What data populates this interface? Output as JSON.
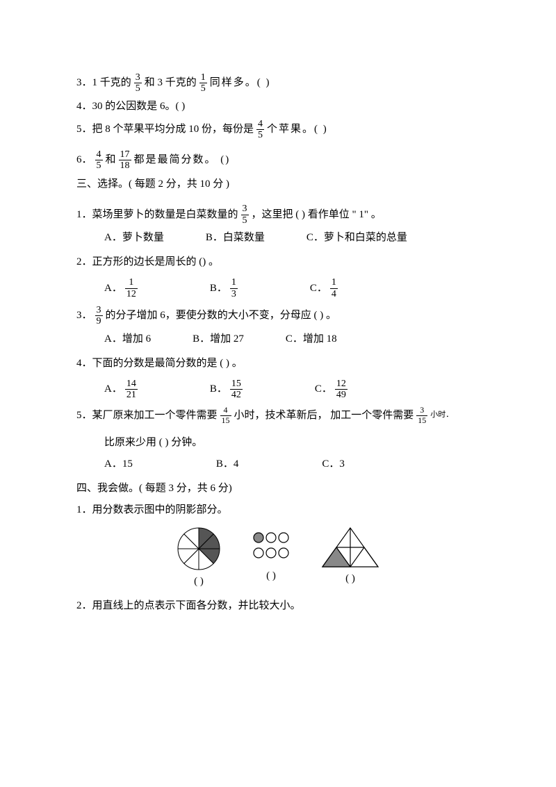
{
  "q3t": {
    "pre": "3．1 千克的",
    "f1n": "3",
    "f1d": "5",
    "mid": "和 3 千克的",
    "f2n": "1",
    "f2d": "5",
    "post": "同样多。(      )"
  },
  "q4t": "4．30 的公因数是 6。(         )",
  "q5t": {
    "pre": "5．把 8 个苹果平均分成  10 份，每份是",
    "fn": "4",
    "fd": "5",
    "post": "个苹果。(       )"
  },
  "q6t": {
    "f1n": "4",
    "f1d": "5",
    "mid": "和",
    "f2n": "17",
    "f2d": "18",
    "post": "都是最简分数。 ()",
    "num": "6．"
  },
  "sec3": "三、选择。( 每题 2 分，共 10 分 )",
  "s3q1": {
    "pre": "1．菜场里萝卜的数量是白菜数量的",
    "fn": "3",
    "fd": "5",
    "mid": "，这里把 (       ) 看作单位 \" 1\" 。",
    "A": "A．萝卜数量",
    "B": "B．白菜数量",
    "C": "C．萝卜和白菜的总量"
  },
  "s3q2": {
    "t": "2．正方形的边长是周长的 () 。",
    "A": "A．",
    "An": "1",
    "Ad": "12",
    "B": "B．",
    "Bn": "1",
    "Bd": "3",
    "C": "C．",
    "Cn": "1",
    "Cd": "4"
  },
  "s3q3": {
    "fn": "3",
    "fd": "9",
    "t": "的分子增加 6，要使分数的大小不变，分母应  (        ) 。",
    "num": "3．",
    "A": "A．增加 6",
    "B": "B．增加 27",
    "C": "C．增加 18"
  },
  "s3q4": {
    "t": "4．下面的分数是最简分数的是 (        ) 。",
    "A": "A．",
    "An": "14",
    "Ad": "21",
    "B": "B．",
    "Bn": "15",
    "Bd": "42",
    "C": "C．",
    "Cn": "12",
    "Cd": "49"
  },
  "s3q5": {
    "pre": "5．某厂原来加工一个零件需要",
    "f1n": "4",
    "f1d": "15",
    "mid": "小时，技术革新后，  加工一个零件需要",
    "f2n": "3",
    "f2d": "15",
    "post": "小时．",
    "t2": "比原来少用 (       ) 分钟。",
    "A": "A．15",
    "B": "B．4",
    "C": "C．3"
  },
  "sec4": "四、我会做。( 每题 3 分，共 6 分)",
  "s4q1": "1．用分数表示图中的阴影部分。",
  "figlabel": "(        )",
  "s4q2": "2．用直线上的点表示下面各分数，并比较大小。",
  "figures": {
    "circle": {
      "r": 30,
      "slices": 8,
      "shaded": [
        0,
        1,
        2
      ],
      "fill": "#555",
      "stroke": "#000"
    },
    "dots": {
      "r": 7,
      "gap": 18,
      "shadedIdx": 0,
      "fill": "#888",
      "stroke": "#000"
    },
    "tri": {
      "w": 80,
      "h": 56,
      "fill": "#888",
      "stroke": "#000"
    }
  }
}
